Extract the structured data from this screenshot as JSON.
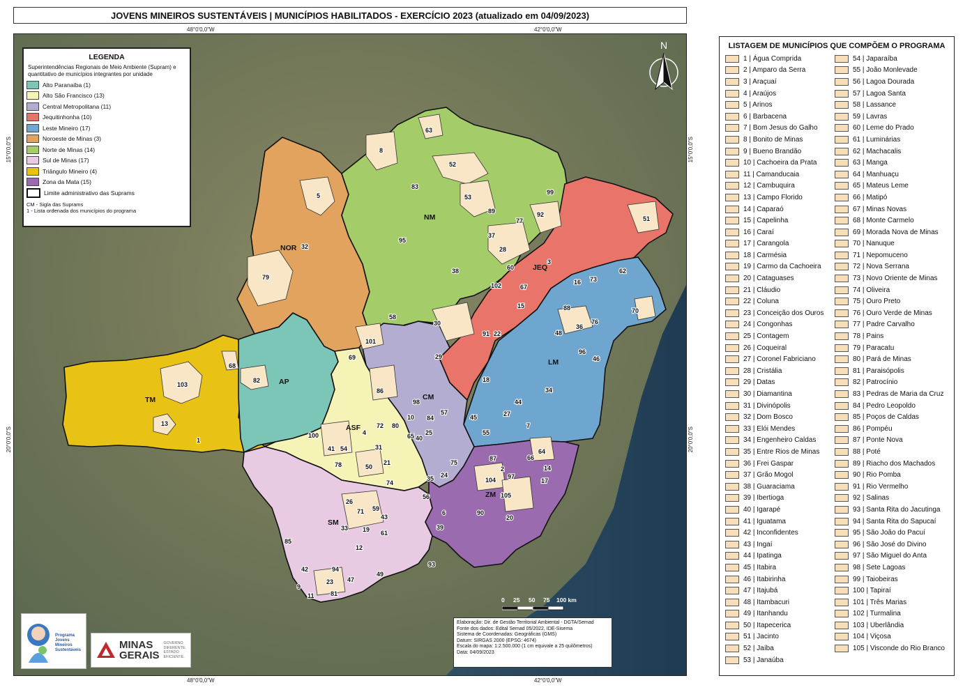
{
  "title": "JOVENS MINEIROS SUSTENTÁVEIS | MUNICÍPIOS HABILITADOS - EXERCÍCIO 2023 (atualizado em 04/09/2023)",
  "coords": {
    "lon_left": "48°0'0,0\"W",
    "lon_right": "42°0'0,0\"W",
    "lat_top": "15°0'0,0\"S",
    "lat_bottom": "20°0'0,0\"S"
  },
  "legend": {
    "title": "LEGENDA",
    "description": "Superintendências Regionais de Meio Ambiente (Supram) e quantitativo de municípios integrantes por unidade",
    "items": [
      {
        "label": "Alto Paranaíba (1)",
        "color": "#7cc6b8"
      },
      {
        "label": "Alto São Francisco (13)",
        "color": "#f6f3b6"
      },
      {
        "label": "Central Metropolitana (11)",
        "color": "#b3aed1"
      },
      {
        "label": "Jequitinhonha (10)",
        "color": "#e9756a"
      },
      {
        "label": "Leste Mineiro (17)",
        "color": "#6fa6cf"
      },
      {
        "label": "Noroeste de Minas (3)",
        "color": "#e2a35f"
      },
      {
        "label": "Norte de Minas (14)",
        "color": "#a4cd6a"
      },
      {
        "label": "Sul de Minas (17)",
        "color": "#e8cbe2"
      },
      {
        "label": "Triângulo Mineiro (4)",
        "color": "#e8c214"
      },
      {
        "label": "Zona da Mata (15)",
        "color": "#9b6bb0"
      }
    ],
    "boundary_label": "Limite administrativo das Suprams",
    "note_cm": "CM - Sigla das Suprams",
    "note_num": "1  - Lista ordenada dos municípios do programa"
  },
  "map": {
    "north": "N",
    "scale": {
      "labels": [
        "0",
        "25",
        "50",
        "75",
        "100 km"
      ]
    },
    "regions": [
      {
        "code": "TM",
        "color": "#e8c214"
      },
      {
        "code": "AP",
        "color": "#7cc6b8"
      },
      {
        "code": "NOR",
        "color": "#e2a35f"
      },
      {
        "code": "NM",
        "color": "#a4cd6a"
      },
      {
        "code": "JEQ",
        "color": "#e9756a"
      },
      {
        "code": "LM",
        "color": "#6fa6cf"
      },
      {
        "code": "CM",
        "color": "#b3aed1"
      },
      {
        "code": "ASF",
        "color": "#f6f3b6"
      },
      {
        "code": "SM",
        "color": "#e8cbe2"
      },
      {
        "code": "ZM",
        "color": "#9b6bb0"
      }
    ],
    "municipality_numbers": [
      "103",
      "68",
      "82",
      "13",
      "1",
      "5",
      "32",
      "79",
      "8",
      "63",
      "52",
      "83",
      "53",
      "99",
      "89",
      "92",
      "77",
      "37",
      "28",
      "95",
      "38",
      "51",
      "3",
      "60",
      "62",
      "16",
      "73",
      "102",
      "67",
      "15",
      "70",
      "88",
      "76",
      "36",
      "48",
      "30",
      "91",
      "22",
      "101",
      "58",
      "69",
      "29",
      "96",
      "46",
      "86",
      "98",
      "18",
      "34",
      "44",
      "57",
      "84",
      "10",
      "65",
      "40",
      "25",
      "27",
      "45",
      "7",
      "55",
      "100",
      "72",
      "80",
      "4",
      "31",
      "41",
      "54",
      "78",
      "50",
      "21",
      "74",
      "75",
      "24",
      "35",
      "64",
      "66",
      "14",
      "17",
      "87",
      "2",
      "104",
      "97",
      "105",
      "90",
      "20",
      "56",
      "6",
      "39",
      "26",
      "71",
      "59",
      "43",
      "33",
      "19",
      "61",
      "12",
      "85",
      "93",
      "42",
      "94",
      "47",
      "49",
      "23",
      "9",
      "11",
      "81"
    ]
  },
  "credits": [
    "Elaboração: Dir. de Gestão Territorial Ambiental - DGTA/Semad",
    "Fonte dos dados: Edital Semad 05/2022, IDE-Sisema",
    "Sistema de Coordenadas: Geográficas (GMS)",
    "Datum: SIRGAS 2000 (EPSG: 4674)",
    "Escala do mapa: 1:2.500.000 (1 cm equivale a 25 quilômetros)",
    "Data: 04/09/2023"
  ],
  "logos": {
    "program": [
      "Programa",
      "Jovens",
      "Mineiros",
      "Sustentáveis"
    ],
    "state": {
      "line1": "MINAS",
      "line2": "GERAIS",
      "tagline": [
        "GOVERNO",
        "DIFERENTE.",
        "ESTADO",
        "EFICIENTE."
      ]
    }
  },
  "list": {
    "title": "LISTAGEM DE MUNICÍPIOS QUE COMPÕEM O PROGRAMA",
    "items": [
      "1 | Água Comprida",
      "2 | Amparo da Serra",
      "3 | Araçuaí",
      "4 | Araújos",
      "5 | Arinos",
      "6 | Barbacena",
      "7 | Bom Jesus do Galho",
      "8 | Bonito de Minas",
      "9 | Bueno Brandão",
      "10 | Cachoeira da Prata",
      "11 | Camanducaia",
      "12 | Cambuquira",
      "13 | Campo Florido",
      "14 | Caparaó",
      "15 | Capelinha",
      "16 | Caraí",
      "17 | Carangola",
      "18 | Carmésia",
      "19 | Carmo da Cachoeira",
      "20 | Cataguases",
      "21 | Cláudio",
      "22 | Coluna",
      "23 | Conceição dos Ouros",
      "24 | Congonhas",
      "25 | Contagem",
      "26 | Coqueiral",
      "27 | Coronel Fabriciano",
      "28 | Cristália",
      "29 | Datas",
      "30 | Diamantina",
      "31 | Divinópolis",
      "32 | Dom Bosco",
      "33 | Elói Mendes",
      "34 | Engenheiro Caldas",
      "35 | Entre Rios de Minas",
      "36 | Frei Gaspar",
      "37 | Grão Mogol",
      "38 | Guaraciama",
      "39 | Ibertioga",
      "40 | Igarapé",
      "41 | Iguatama",
      "42 | Inconfidentes",
      "43 | Ingaí",
      "44 | Ipatinga",
      "45 | Itabira",
      "46 | Itabirinha",
      "47 | Itajubá",
      "48 | Itambacuri",
      "49 | Itanhandu",
      "50 | Itapecerica",
      "51 | Jacinto",
      "52 | Jaíba",
      "53 | Janaúba",
      "54 | Japaraíba",
      "55 | João Monlevade",
      "56 | Lagoa Dourada",
      "57 | Lagoa Santa",
      "58 | Lassance",
      "59 | Lavras",
      "60 | Leme do Prado",
      "61 | Luminárias",
      "62 | Machacalis",
      "63 | Manga",
      "64 | Manhuaçu",
      "65 | Mateus Leme",
      "66 | Matipó",
      "67 | Minas Novas",
      "68 | Monte Carmelo",
      "69 | Morada Nova de Minas",
      "70 | Nanuque",
      "71 | Nepomuceno",
      "72 | Nova Serrana",
      "73 | Novo Oriente de Minas",
      "74 | Oliveira",
      "75 | Ouro Preto",
      "76 | Ouro Verde de Minas",
      "77 | Padre Carvalho",
      "78 | Pains",
      "79 | Paracatu",
      "80 | Pará de Minas",
      "81 | Paraisópolis",
      "82 | Patrocínio",
      "83 | Pedras de Maria da Cruz",
      "84 | Pedro Leopoldo",
      "85 | Poços de Caldas",
      "86 | Pompéu",
      "87 | Ponte Nova",
      "88 | Poté",
      "89 | Riacho dos Machados",
      "90 | Rio Pomba",
      "91 | Rio Vermelho",
      "92 | Salinas",
      "93 | Santa Rita do Jacutinga",
      "94 | Santa Rita do Sapucaí",
      "95 | São João do Pacuí",
      "96 | São José do Divino",
      "97 | São Miguel do Anta",
      "98 | Sete Lagoas",
      "99 | Taiobeiras",
      "100 | Tapiraí",
      "101 | Três Marias",
      "102 | Turmalina",
      "103 | Uberlândia",
      "104 | Viçosa",
      "105 | Visconde do Rio Branco"
    ]
  }
}
